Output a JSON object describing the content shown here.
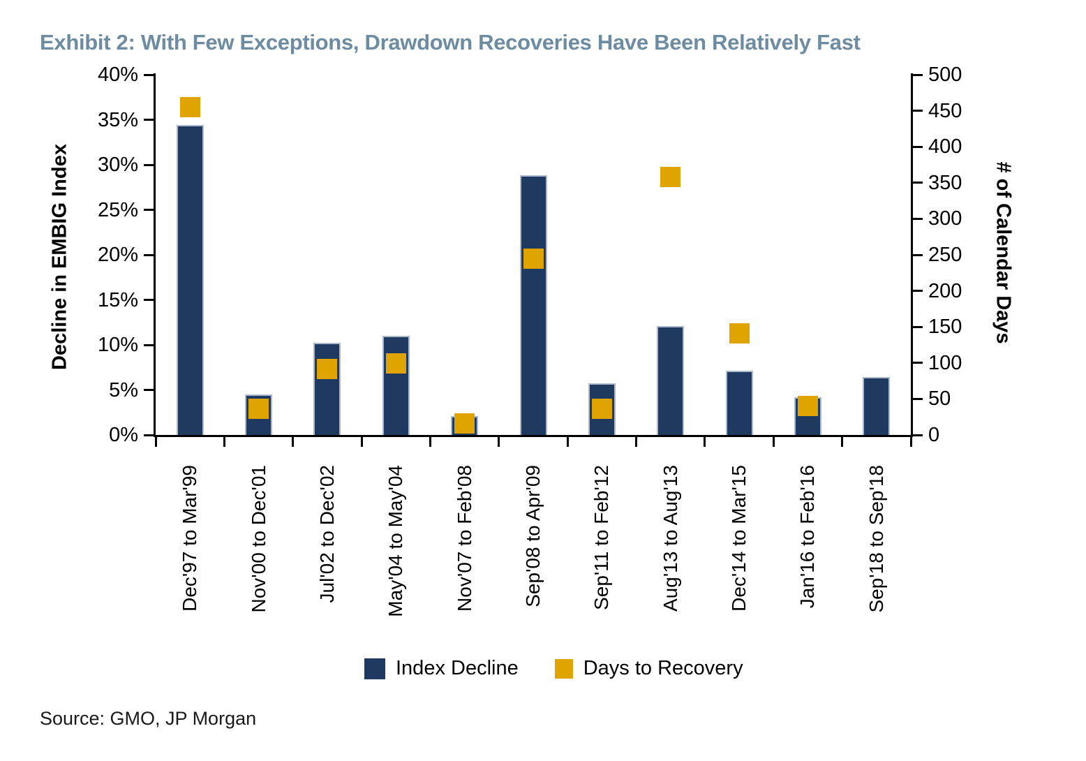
{
  "page": {
    "title": "Exhibit 2: With Few Exceptions, Drawdown Recoveries Have Been Relatively Fast",
    "source": "Source: GMO, JP Morgan"
  },
  "colors": {
    "navy": "#1F3A60",
    "gold": "#E0A400",
    "title_text": "#6D8CA1",
    "bar_edge": "#AEB8CD",
    "axis": "#000000"
  },
  "chart_data": {
    "type": "bar",
    "title": "Exhibit 2: With Few Exceptions, Drawdown Recoveries Have Been Relatively Fast",
    "categories": [
      "Dec'97 to Mar'99",
      "Nov'00 to Dec'01",
      "Jul'02 to Dec'02",
      "May'04 to May'04",
      "Nov'07 to Feb'08",
      "Sep'08 to Apr'09",
      "Sep'11 to Feb'12",
      "Aug'13 to Aug'13",
      "Dec'14 to Mar'15",
      "Jan'16 to Feb'16",
      "Sep'18 to Sep'18"
    ],
    "series": [
      {
        "name": "Index Decline",
        "type": "bar",
        "axis": "left",
        "unit": "percent",
        "values": [
          34.4,
          4.5,
          10.2,
          11.0,
          2.1,
          28.8,
          5.7,
          12.1,
          7.1,
          4.2,
          6.4
        ]
      },
      {
        "name": "Days to Recovery",
        "type": "square-marker",
        "axis": "right",
        "unit": "calendar days",
        "values": [
          455,
          36,
          92,
          99,
          16,
          245,
          36,
          358,
          141,
          40,
          null
        ]
      }
    ],
    "left_axis": {
      "label": "Decline in EMBIG Index",
      "min": 0,
      "max": 40,
      "step": 5,
      "tick_labels": [
        "0%",
        "5%",
        "10%",
        "15%",
        "20%",
        "25%",
        "30%",
        "35%",
        "40%"
      ]
    },
    "right_axis": {
      "label": "# of Calendar Days",
      "min": 0,
      "max": 500,
      "step": 50,
      "tick_labels": [
        "0",
        "50",
        "100",
        "150",
        "200",
        "250",
        "300",
        "350",
        "400",
        "450",
        "500"
      ]
    },
    "legend_position": "bottom",
    "grid": false
  }
}
